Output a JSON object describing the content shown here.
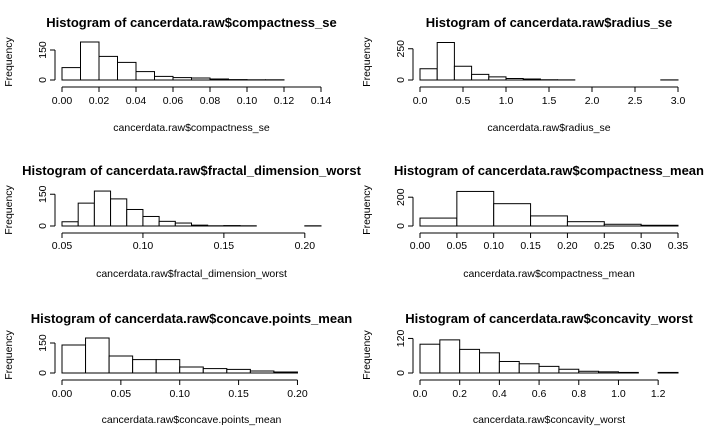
{
  "chart_data": [
    {
      "type": "bar",
      "title": "Histogram of cancerdata.raw$compactness_se",
      "xlabel": "cancerdata.raw$compactness_se",
      "ylabel": "Frequency",
      "bin_width": 0.01,
      "bin_start": 0.0,
      "values": [
        62,
        190,
        118,
        88,
        42,
        18,
        12,
        10,
        5,
        2,
        1,
        1,
        0,
        0
      ],
      "xlim": [
        0,
        0.14
      ],
      "ylim": [
        0,
        200
      ],
      "xticks": [
        "0.00",
        "0.02",
        "0.04",
        "0.06",
        "0.08",
        "0.10",
        "0.12",
        "0.14"
      ],
      "xtick_values": [
        0,
        0.02,
        0.04,
        0.06,
        0.08,
        0.1,
        0.12,
        0.14
      ],
      "yticks": [
        "0",
        "150"
      ],
      "ytick_values": [
        0,
        150
      ]
    },
    {
      "type": "bar",
      "title": "Histogram of cancerdata.raw$radius_se",
      "xlabel": "cancerdata.raw$radius_se",
      "ylabel": "Frequency",
      "bin_width": 0.2,
      "bin_start": 0.0,
      "values": [
        90,
        300,
        110,
        45,
        25,
        12,
        8,
        2,
        1,
        0,
        0,
        0,
        0,
        0,
        1
      ],
      "xlim": [
        0,
        3
      ],
      "ylim": [
        0,
        320
      ],
      "xticks": [
        "0.0",
        "0.5",
        "1.0",
        "1.5",
        "2.0",
        "2.5",
        "3.0"
      ],
      "xtick_values": [
        0,
        0.5,
        1.0,
        1.5,
        2.0,
        2.5,
        3.0
      ],
      "yticks": [
        "0",
        "250"
      ],
      "ytick_values": [
        0,
        250
      ]
    },
    {
      "type": "bar",
      "title": "Histogram of cancerdata.raw$fractal_dimension_worst",
      "xlabel": "cancerdata.raw$fractal_dimension_worst",
      "ylabel": "Frequency",
      "bin_width": 0.01,
      "bin_start": 0.05,
      "values": [
        20,
        108,
        165,
        128,
        78,
        45,
        22,
        14,
        4,
        1,
        2,
        1,
        0,
        0,
        0,
        1
      ],
      "xlim": [
        0.05,
        0.21
      ],
      "ylim": [
        0,
        170
      ],
      "xticks": [
        "0.05",
        "0.10",
        "0.15",
        "0.20"
      ],
      "xtick_values": [
        0.05,
        0.1,
        0.15,
        0.2
      ],
      "yticks": [
        "0",
        "150"
      ],
      "ytick_values": [
        0,
        150
      ]
    },
    {
      "type": "bar",
      "title": "Histogram of cancerdata.raw$compactness_mean",
      "xlabel": "cancerdata.raw$compactness_mean",
      "ylabel": "Frequency",
      "bin_width": 0.05,
      "bin_start": 0.0,
      "values": [
        55,
        240,
        155,
        70,
        30,
        12,
        5
      ],
      "xlim": [
        0,
        0.35
      ],
      "ylim": [
        0,
        250
      ],
      "xticks": [
        "0.00",
        "0.05",
        "0.10",
        "0.15",
        "0.20",
        "0.25",
        "0.30",
        "0.35"
      ],
      "xtick_values": [
        0,
        0.05,
        0.1,
        0.15,
        0.2,
        0.25,
        0.3,
        0.35
      ],
      "yticks": [
        "0",
        "200"
      ],
      "ytick_values": [
        0,
        200
      ]
    },
    {
      "type": "bar",
      "title": "Histogram of cancerdata.raw$concave.points_mean",
      "xlabel": "cancerdata.raw$concave.points_mean",
      "ylabel": "Frequency",
      "bin_width": 0.02,
      "bin_start": 0.0,
      "values": [
        140,
        175,
        85,
        67,
        67,
        30,
        22,
        18,
        10,
        5
      ],
      "xlim": [
        0,
        0.22
      ],
      "ylim": [
        0,
        180
      ],
      "xticks": [
        "0.00",
        "0.05",
        "0.10",
        "0.15",
        "0.20"
      ],
      "xtick_values": [
        0,
        0.05,
        0.1,
        0.15,
        0.2
      ],
      "yticks": [
        "0",
        "150"
      ],
      "ytick_values": [
        0,
        150
      ]
    },
    {
      "type": "bar",
      "title": "Histogram of cancerdata.raw$concavity_worst",
      "xlabel": "cancerdata.raw$concavity_worst",
      "ylabel": "Frequency",
      "bin_width": 0.1,
      "bin_start": 0.0,
      "values": [
        100,
        115,
        82,
        70,
        40,
        32,
        23,
        13,
        6,
        4,
        2,
        0,
        2
      ],
      "xlim": [
        0,
        1.3
      ],
      "ylim": [
        0,
        125
      ],
      "xticks": [
        "0.0",
        "0.2",
        "0.4",
        "0.6",
        "0.8",
        "1.0",
        "1.2"
      ],
      "xtick_values": [
        0,
        0.2,
        0.4,
        0.6,
        0.8,
        1.0,
        1.2
      ],
      "yticks": [
        "0",
        "120"
      ],
      "ytick_values": [
        0,
        120
      ]
    }
  ]
}
